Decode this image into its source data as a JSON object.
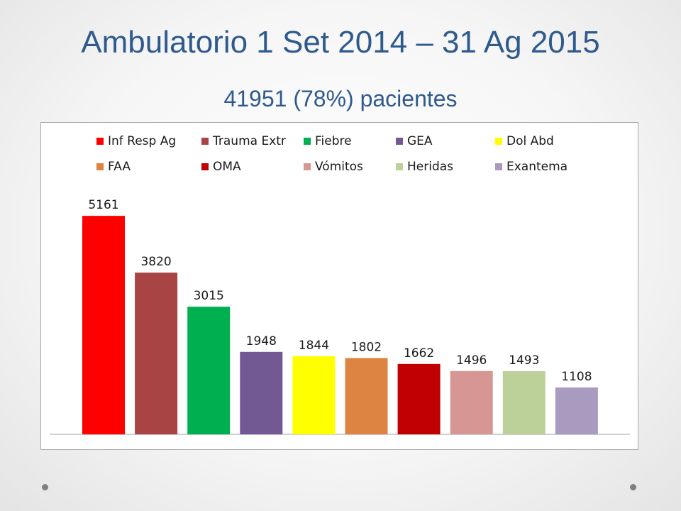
{
  "slide": {
    "title": "Ambulatorio 1 Set 2014 – 31 Ag 2015",
    "subtitle": "41951 (78%) pacientes"
  },
  "chart_data": {
    "type": "bar",
    "categories": [
      "Inf Resp Ag",
      "Trauma Extr",
      "Fiebre",
      "GEA",
      "Dol Abd",
      "FAA",
      "OMA",
      "Vómitos",
      "Heridas",
      "Exantema"
    ],
    "values": [
      5161,
      3820,
      3015,
      1948,
      1844,
      1802,
      1662,
      1496,
      1493,
      1108
    ],
    "colors": [
      "#ff0000",
      "#a84444",
      "#00b050",
      "#735993",
      "#ffff00",
      "#dd8442",
      "#c00000",
      "#d69694",
      "#bcd09a",
      "#a99bc0"
    ],
    "legend_position": "top",
    "grid": false,
    "ylim": [
      0,
      5800
    ]
  }
}
